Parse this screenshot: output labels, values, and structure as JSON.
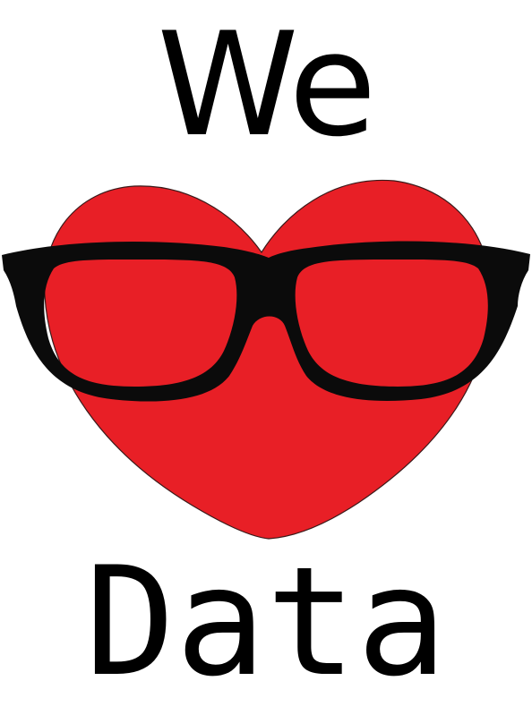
{
  "headline": {
    "top": "We",
    "bottom": "Data"
  },
  "icons": {
    "heart": "heart-icon",
    "glasses": "glasses-icon"
  },
  "colors": {
    "heart": "#e81f26",
    "heart_outline": "#3a1a1a",
    "glasses": "#0b0b0b",
    "text": "#000000",
    "background": "#ffffff"
  }
}
